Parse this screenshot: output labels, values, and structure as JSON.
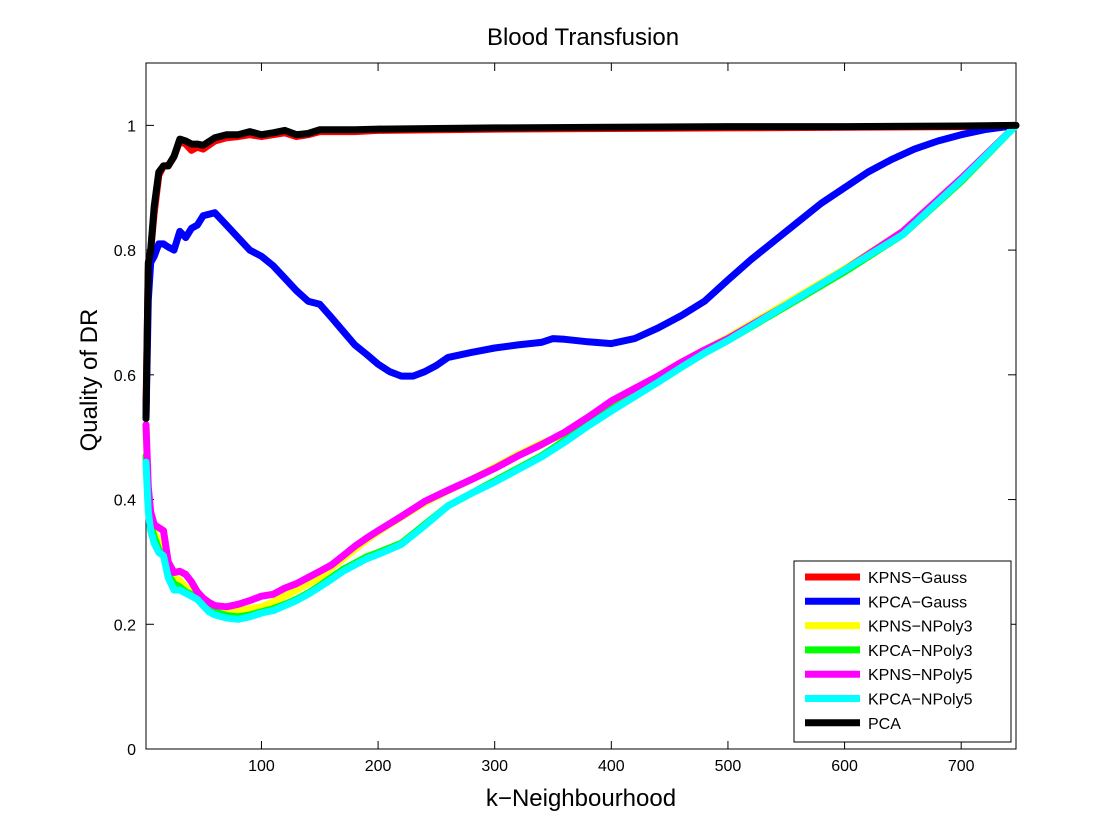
{
  "chart_data": {
    "type": "line",
    "title": "Blood Transfusion",
    "xlabel": "k−Neighbourhood",
    "ylabel": "Quality of DR",
    "xlim": [
      1,
      747
    ],
    "ylim": [
      0,
      1.1
    ],
    "xticks": [
      100,
      200,
      300,
      400,
      500,
      600,
      700
    ],
    "yticks": [
      0,
      0.2,
      0.4,
      0.6,
      0.8,
      1
    ],
    "ytick_labels": [
      "0",
      "0.2",
      "0.4",
      "0.6",
      "0.8",
      "1"
    ],
    "grid": false,
    "legend_position": "bottom-right",
    "series": [
      {
        "name": "KPNS−Gauss",
        "color": "#ff0000",
        "x": [
          1,
          3,
          5,
          8,
          12,
          16,
          20,
          25,
          30,
          35,
          40,
          45,
          50,
          60,
          70,
          80,
          90,
          100,
          110,
          120,
          130,
          140,
          150,
          160,
          180,
          200,
          250,
          300,
          400,
          500,
          600,
          700,
          747
        ],
        "y": [
          0.55,
          0.77,
          0.8,
          0.86,
          0.92,
          0.935,
          0.935,
          0.95,
          0.975,
          0.97,
          0.96,
          0.965,
          0.962,
          0.975,
          0.98,
          0.982,
          0.985,
          0.982,
          0.985,
          0.988,
          0.982,
          0.985,
          0.99,
          0.99,
          0.99,
          0.992,
          0.993,
          0.994,
          0.995,
          0.996,
          0.997,
          0.998,
          1.0
        ]
      },
      {
        "name": "KPCA−Gauss",
        "color": "#0000ff",
        "x": [
          1,
          3,
          5,
          8,
          12,
          16,
          20,
          25,
          30,
          35,
          40,
          45,
          50,
          60,
          70,
          80,
          90,
          100,
          110,
          120,
          130,
          140,
          150,
          160,
          170,
          180,
          190,
          200,
          210,
          220,
          230,
          240,
          250,
          260,
          270,
          280,
          300,
          320,
          340,
          350,
          360,
          380,
          400,
          420,
          440,
          460,
          480,
          500,
          520,
          540,
          560,
          580,
          600,
          620,
          640,
          660,
          680,
          700,
          720,
          747
        ],
        "y": [
          0.53,
          0.72,
          0.78,
          0.79,
          0.81,
          0.81,
          0.805,
          0.8,
          0.83,
          0.82,
          0.835,
          0.84,
          0.855,
          0.86,
          0.84,
          0.82,
          0.8,
          0.79,
          0.775,
          0.755,
          0.735,
          0.718,
          0.713,
          0.692,
          0.67,
          0.648,
          0.633,
          0.617,
          0.605,
          0.598,
          0.598,
          0.605,
          0.615,
          0.628,
          0.632,
          0.636,
          0.643,
          0.648,
          0.652,
          0.658,
          0.657,
          0.653,
          0.65,
          0.658,
          0.675,
          0.695,
          0.718,
          0.752,
          0.785,
          0.815,
          0.845,
          0.875,
          0.9,
          0.925,
          0.945,
          0.962,
          0.975,
          0.985,
          0.993,
          1.0
        ]
      },
      {
        "name": "KPNS−NPoly3",
        "color": "#ffff00",
        "x": [
          1,
          3,
          5,
          8,
          12,
          16,
          20,
          25,
          30,
          35,
          40,
          45,
          50,
          55,
          60,
          70,
          80,
          90,
          100,
          110,
          120,
          130,
          140,
          150,
          160,
          170,
          180,
          190,
          200,
          220,
          240,
          260,
          280,
          300,
          320,
          340,
          360,
          380,
          400,
          420,
          440,
          460,
          480,
          500,
          550,
          600,
          650,
          700,
          747
        ],
        "y": [
          0.52,
          0.4,
          0.37,
          0.35,
          0.33,
          0.32,
          0.29,
          0.275,
          0.27,
          0.26,
          0.255,
          0.245,
          0.235,
          0.23,
          0.228,
          0.222,
          0.222,
          0.225,
          0.228,
          0.236,
          0.245,
          0.255,
          0.265,
          0.275,
          0.29,
          0.305,
          0.32,
          0.335,
          0.348,
          0.372,
          0.395,
          0.414,
          0.432,
          0.452,
          0.472,
          0.49,
          0.505,
          0.53,
          0.555,
          0.575,
          0.598,
          0.62,
          0.64,
          0.66,
          0.715,
          0.77,
          0.83,
          0.915,
          1.0
        ]
      },
      {
        "name": "KPCA−NPoly3",
        "color": "#00ff00",
        "x": [
          1,
          3,
          5,
          8,
          12,
          16,
          20,
          25,
          30,
          35,
          40,
          45,
          50,
          55,
          60,
          70,
          80,
          90,
          100,
          110,
          120,
          130,
          140,
          150,
          160,
          170,
          180,
          190,
          200,
          220,
          240,
          260,
          280,
          300,
          320,
          340,
          360,
          380,
          400,
          420,
          440,
          460,
          480,
          500,
          550,
          600,
          650,
          700,
          747
        ],
        "y": [
          0.47,
          0.39,
          0.36,
          0.34,
          0.32,
          0.31,
          0.28,
          0.265,
          0.26,
          0.252,
          0.248,
          0.24,
          0.232,
          0.225,
          0.22,
          0.214,
          0.212,
          0.215,
          0.22,
          0.225,
          0.232,
          0.24,
          0.25,
          0.262,
          0.275,
          0.288,
          0.298,
          0.308,
          0.315,
          0.33,
          0.36,
          0.39,
          0.41,
          0.43,
          0.45,
          0.47,
          0.495,
          0.52,
          0.545,
          0.565,
          0.59,
          0.612,
          0.635,
          0.655,
          0.71,
          0.765,
          0.825,
          0.91,
          1.0
        ]
      },
      {
        "name": "KPNS−NPoly5",
        "color": "#ff00ff",
        "x": [
          1,
          3,
          5,
          8,
          12,
          16,
          20,
          25,
          30,
          35,
          40,
          45,
          50,
          55,
          60,
          70,
          80,
          90,
          100,
          110,
          120,
          130,
          140,
          150,
          160,
          170,
          180,
          190,
          200,
          220,
          240,
          260,
          280,
          300,
          320,
          340,
          360,
          380,
          400,
          420,
          440,
          460,
          480,
          500,
          550,
          600,
          650,
          700,
          747
        ],
        "y": [
          0.52,
          0.42,
          0.38,
          0.36,
          0.355,
          0.35,
          0.3,
          0.283,
          0.285,
          0.28,
          0.268,
          0.252,
          0.242,
          0.235,
          0.23,
          0.228,
          0.232,
          0.238,
          0.245,
          0.248,
          0.258,
          0.265,
          0.275,
          0.285,
          0.295,
          0.31,
          0.325,
          0.338,
          0.35,
          0.373,
          0.397,
          0.415,
          0.432,
          0.45,
          0.47,
          0.488,
          0.508,
          0.532,
          0.558,
          0.578,
          0.598,
          0.62,
          0.64,
          0.658,
          0.712,
          0.768,
          0.83,
          0.915,
          1.0
        ]
      },
      {
        "name": "KPCA−NPoly5",
        "color": "#00ffff",
        "x": [
          1,
          3,
          5,
          8,
          12,
          16,
          20,
          25,
          30,
          35,
          40,
          45,
          50,
          55,
          60,
          70,
          80,
          90,
          100,
          110,
          120,
          130,
          140,
          150,
          160,
          170,
          180,
          190,
          200,
          220,
          240,
          260,
          280,
          300,
          320,
          340,
          360,
          380,
          400,
          420,
          440,
          460,
          480,
          500,
          550,
          600,
          650,
          700,
          747
        ],
        "y": [
          0.46,
          0.38,
          0.35,
          0.33,
          0.315,
          0.31,
          0.275,
          0.255,
          0.255,
          0.25,
          0.245,
          0.24,
          0.23,
          0.22,
          0.215,
          0.21,
          0.208,
          0.212,
          0.218,
          0.222,
          0.23,
          0.238,
          0.248,
          0.26,
          0.272,
          0.285,
          0.295,
          0.305,
          0.312,
          0.328,
          0.358,
          0.39,
          0.41,
          0.428,
          0.448,
          0.468,
          0.492,
          0.518,
          0.542,
          0.565,
          0.588,
          0.612,
          0.635,
          0.655,
          0.712,
          0.768,
          0.825,
          0.912,
          1.0
        ]
      },
      {
        "name": "PCA",
        "color": "#000000",
        "x": [
          1,
          3,
          5,
          8,
          12,
          16,
          20,
          25,
          30,
          35,
          40,
          45,
          50,
          60,
          70,
          80,
          90,
          100,
          110,
          120,
          130,
          140,
          150,
          160,
          180,
          200,
          250,
          300,
          400,
          500,
          600,
          700,
          747
        ],
        "y": [
          0.53,
          0.78,
          0.8,
          0.87,
          0.925,
          0.935,
          0.935,
          0.95,
          0.978,
          0.975,
          0.97,
          0.97,
          0.968,
          0.98,
          0.985,
          0.985,
          0.99,
          0.985,
          0.988,
          0.992,
          0.985,
          0.987,
          0.993,
          0.993,
          0.993,
          0.994,
          0.995,
          0.996,
          0.997,
          0.998,
          0.998,
          0.999,
          1.0
        ]
      }
    ]
  }
}
